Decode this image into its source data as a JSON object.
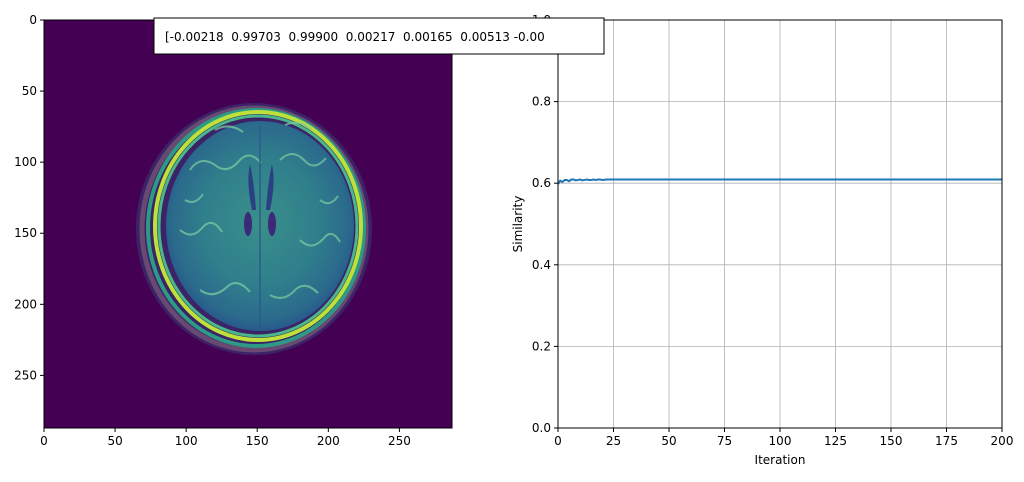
{
  "image_panel": {
    "type": "image",
    "content": "axial brain MRI slice, viridis colormap",
    "x_ticks": [
      "0",
      "50",
      "100",
      "150",
      "200",
      "250"
    ],
    "y_ticks": [
      "0",
      "50",
      "100",
      "150",
      "200",
      "250"
    ],
    "x_range": [
      0,
      287
    ],
    "y_range": [
      0,
      287
    ],
    "annotation_text": "[-0.00218  0.99703  0.99900  0.00217  0.00165  0.00513 -0.00"
  },
  "chart_data": {
    "type": "line",
    "title": "",
    "xlabel": "Iteration",
    "ylabel": "Similarity",
    "xlim": [
      0,
      200
    ],
    "ylim": [
      0.0,
      1.0
    ],
    "x_ticks": [
      "0",
      "25",
      "50",
      "75",
      "100",
      "125",
      "150",
      "175",
      "200"
    ],
    "y_ticks": [
      "0.0",
      "0.2",
      "0.4",
      "0.6",
      "0.8",
      "1.0"
    ],
    "grid": true,
    "series": [
      {
        "name": "Similarity",
        "color": "#1f77b4",
        "x": [
          0,
          1,
          2,
          3,
          4,
          5,
          6,
          7,
          8,
          9,
          10,
          11,
          12,
          13,
          14,
          15,
          16,
          17,
          18,
          19,
          20,
          22,
          24,
          26,
          28,
          30,
          35,
          40,
          50,
          60,
          80,
          100,
          120,
          140,
          160,
          180,
          200
        ],
        "y": [
          0.598,
          0.606,
          0.603,
          0.608,
          0.608,
          0.605,
          0.609,
          0.609,
          0.607,
          0.608,
          0.609,
          0.607,
          0.608,
          0.609,
          0.608,
          0.608,
          0.609,
          0.608,
          0.609,
          0.609,
          0.608,
          0.609,
          0.609,
          0.609,
          0.609,
          0.609,
          0.609,
          0.609,
          0.609,
          0.609,
          0.609,
          0.609,
          0.609,
          0.609,
          0.609,
          0.609,
          0.609
        ]
      }
    ]
  }
}
